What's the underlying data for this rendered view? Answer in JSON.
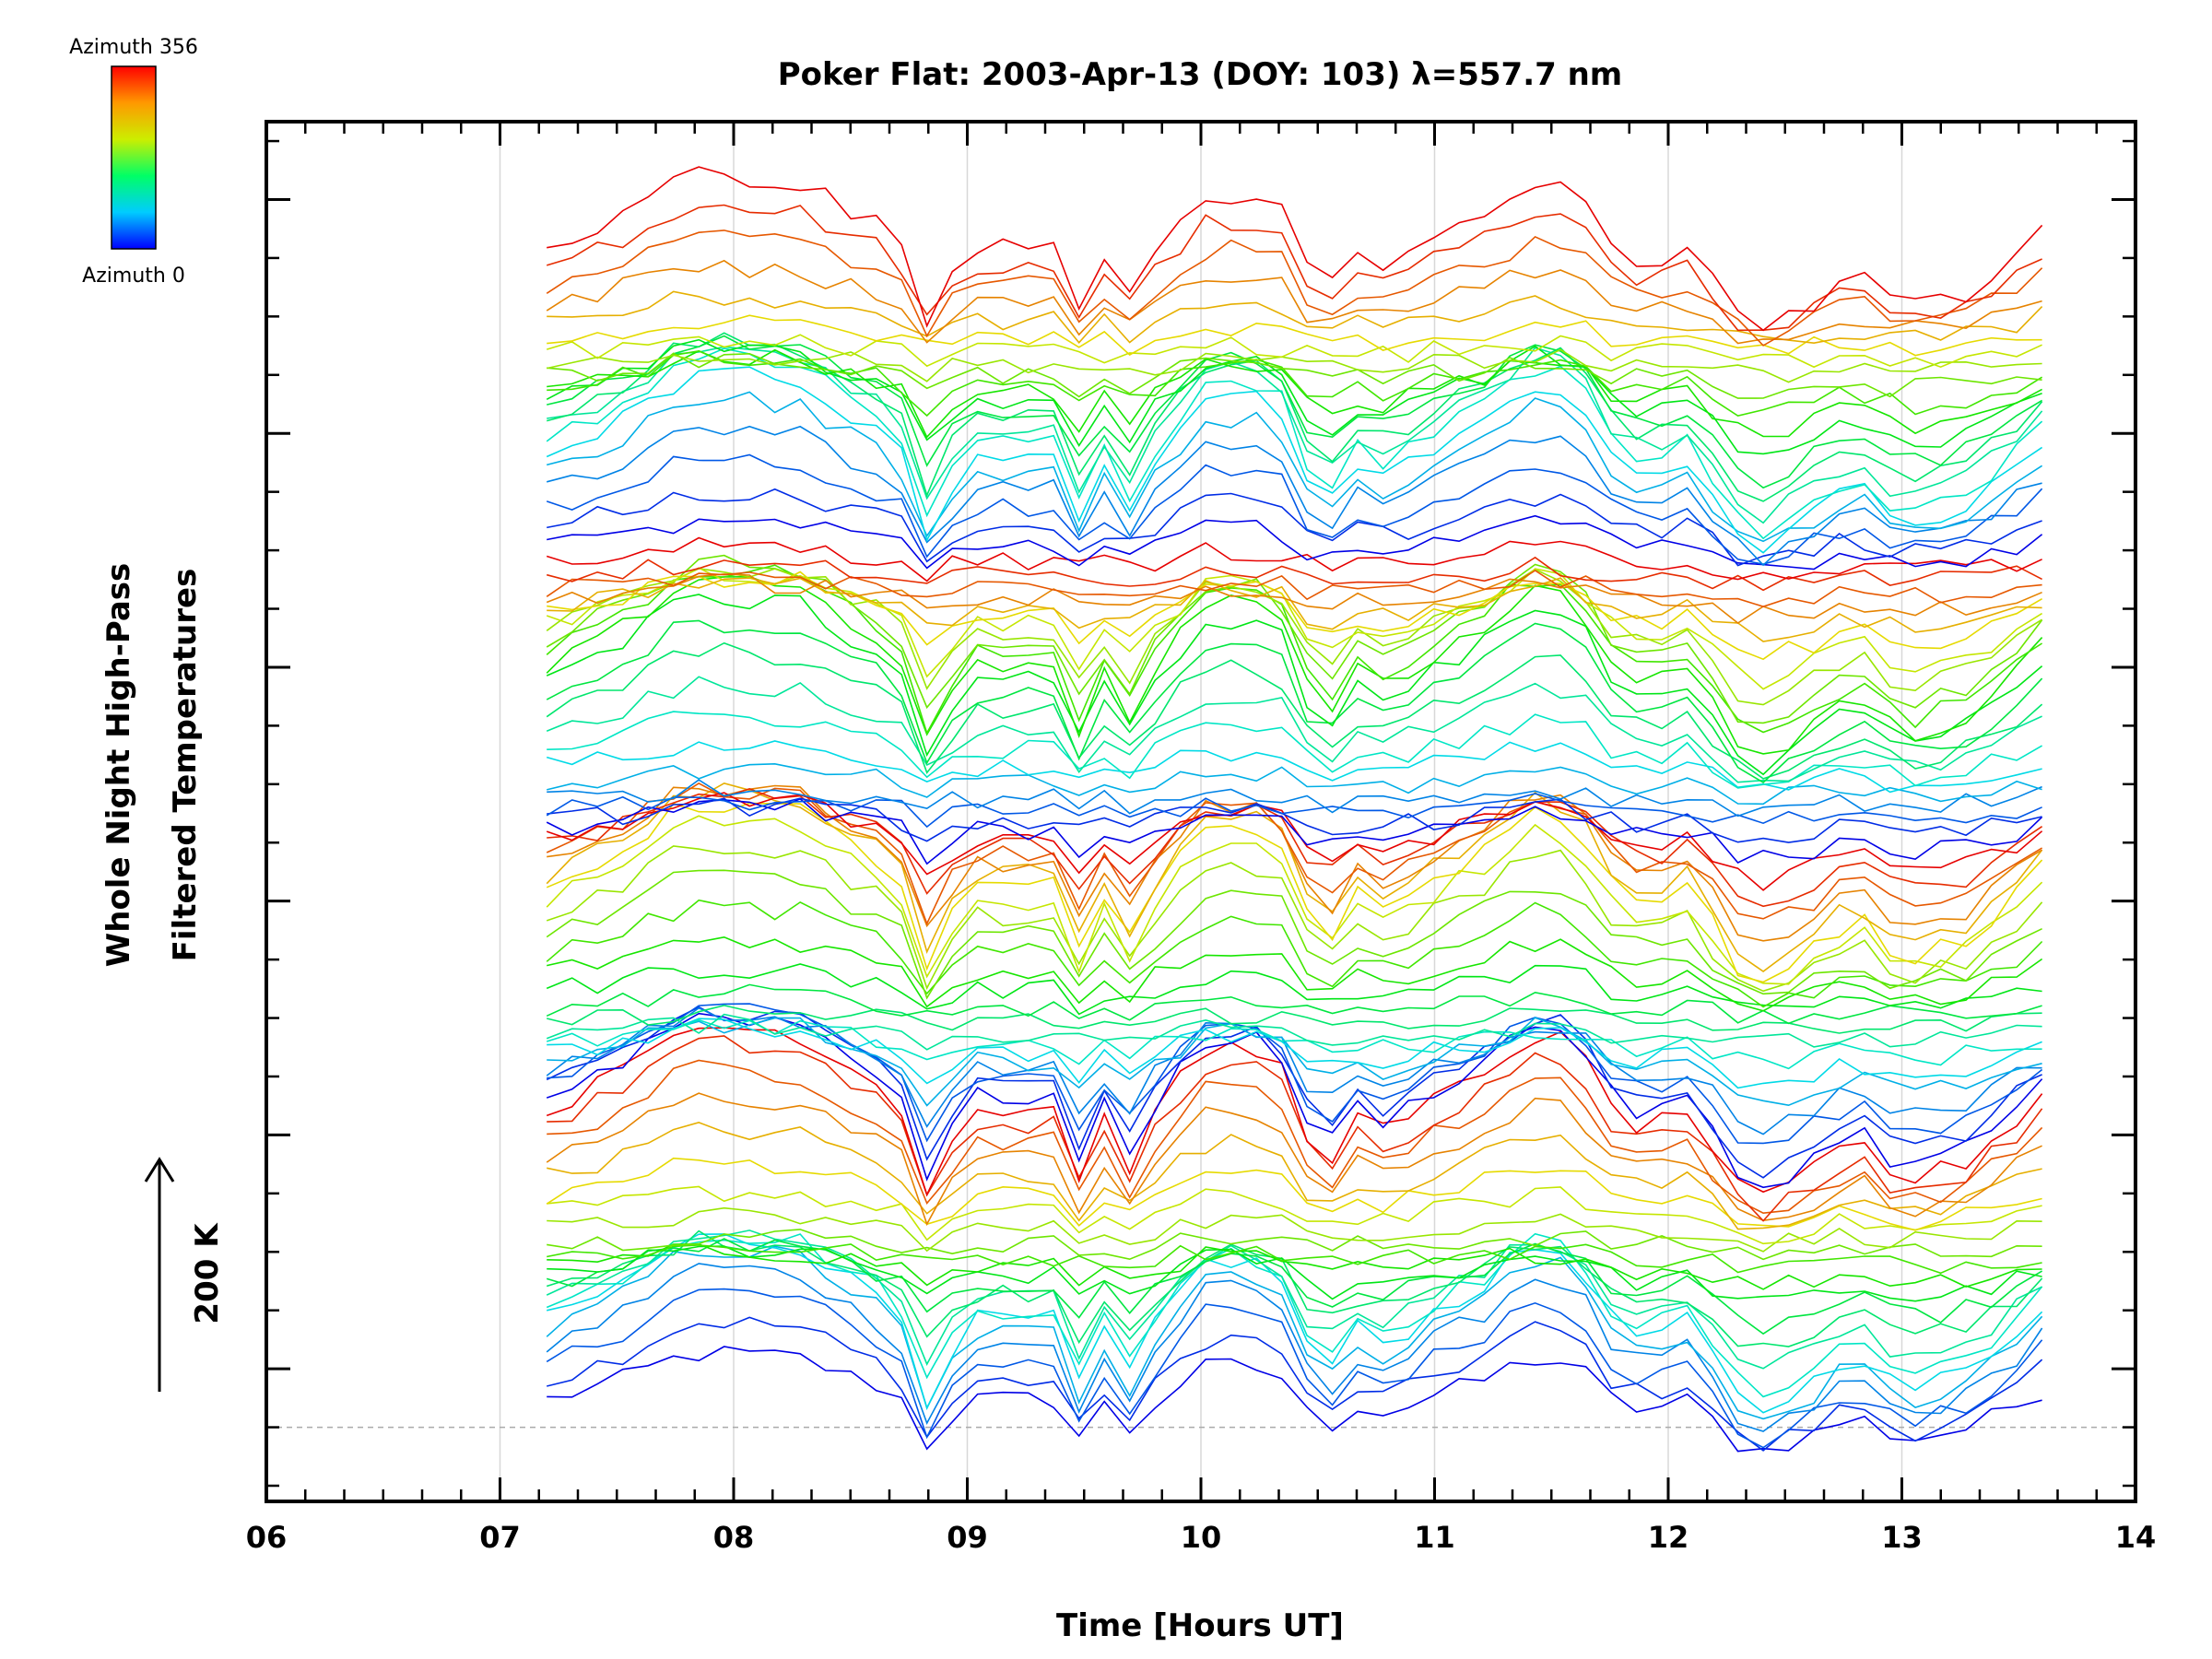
{
  "chart_data": {
    "type": "line",
    "title": "Poker Flat: 2003-Apr-13 (DOY: 103) λ=557.7 nm",
    "xlabel": "Time [Hours UT]",
    "ylabel_line1": "Whole Night High-Pass",
    "ylabel_line2": "Filtered Temperatures",
    "scale_label": "200 K",
    "colorbar": {
      "top_label": "Azimuth 356",
      "bottom_label": "Azimuth 0",
      "colors": [
        "#ff0000",
        "#ff8000",
        "#ffff00",
        "#00ff00",
        "#00ffff",
        "#0000ff"
      ]
    },
    "xlim": [
      6,
      14
    ],
    "x_ticks": [
      "06",
      "07",
      "08",
      "09",
      "10",
      "11",
      "12",
      "13",
      "14"
    ],
    "x_range_data": [
      7.2,
      13.6
    ],
    "baseline_offset": 0,
    "series_count": 88,
    "common_profile": {
      "x": [
        7.2,
        7.5,
        7.8,
        8.0,
        8.3,
        8.5,
        8.7,
        8.82,
        9.0,
        9.2,
        9.4,
        9.5,
        9.6,
        9.7,
        9.8,
        10.0,
        10.2,
        10.4,
        10.52,
        10.6,
        10.8,
        11.0,
        11.2,
        11.4,
        11.6,
        11.8,
        12.0,
        12.1,
        12.2,
        12.35,
        12.6,
        12.8,
        12.9,
        13.0,
        13.1,
        13.3,
        13.5,
        13.6
      ],
      "y": [
        40,
        80,
        140,
        140,
        130,
        90,
        60,
        -60,
        40,
        40,
        40,
        -60,
        40,
        -30,
        30,
        110,
        115,
        80,
        -75,
        40,
        10,
        50,
        80,
        130,
        120,
        20,
        25,
        40,
        -10,
        -80,
        -40,
        5,
        -20,
        -50,
        -40,
        -20,
        30,
        60
      ]
    },
    "y_ticks_minor": 24
  }
}
